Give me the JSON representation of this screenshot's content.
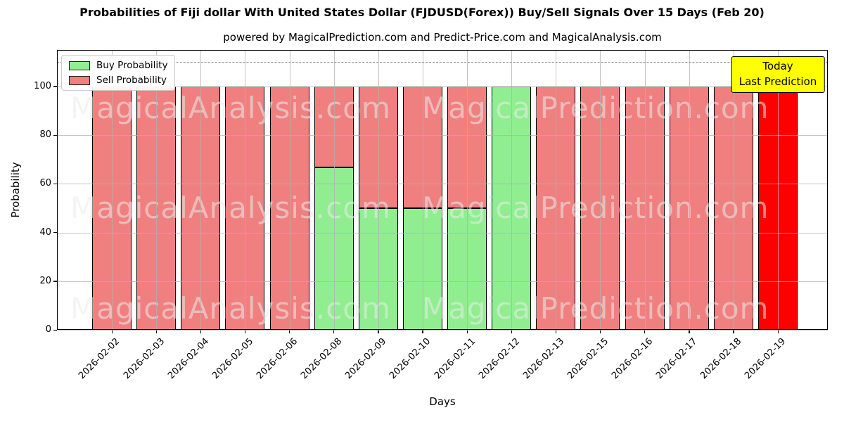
{
  "chart_data": {
    "type": "bar",
    "stacked": true,
    "title": "Probabilities of Fiji dollar With United States Dollar (FJDUSD(Forex)) Buy/Sell Signals Over 15 Days (Feb 20)",
    "subtitle": "powered by MagicalPrediction.com and Predict-Price.com and MagicalAnalysis.com",
    "xlabel": "Days",
    "ylabel": "Probability",
    "ylim": [
      0,
      115
    ],
    "yticks": [
      0,
      20,
      40,
      60,
      80,
      100
    ],
    "grid": true,
    "dashed_guide_y": 110,
    "categories": [
      "2026-02-02",
      "2026-02-03",
      "2026-02-04",
      "2026-02-05",
      "2026-02-06",
      "2026-02-08",
      "2026-02-09",
      "2026-02-10",
      "2026-02-11",
      "2026-02-12",
      "2026-02-13",
      "2026-02-15",
      "2026-02-16",
      "2026-02-17",
      "2026-02-18",
      "2026-02-19"
    ],
    "series": [
      {
        "name": "Buy Probability",
        "color": "#90ee90",
        "values": [
          0,
          0,
          0,
          0,
          0,
          66.67,
          50,
          50,
          50,
          100,
          0,
          0,
          0,
          0,
          0,
          0
        ]
      },
      {
        "name": "Sell Probability",
        "color": "#f08080",
        "values": [
          100,
          100,
          100,
          100,
          100,
          33.33,
          50,
          50,
          50,
          0,
          100,
          100,
          100,
          100,
          100,
          100
        ]
      }
    ],
    "last_prediction": {
      "index": 15,
      "color": "#ff0000"
    },
    "legend": {
      "position": "upper-left",
      "items": [
        {
          "label": "Buy Probability",
          "color": "#90ee90"
        },
        {
          "label": "Sell Probability",
          "color": "#f08080"
        }
      ]
    },
    "annotation": {
      "lines": [
        "Today",
        "Last Prediction"
      ],
      "bg_color": "#ffff00"
    },
    "watermarks": [
      "MagicalAnalysis.com",
      "MagicalPrediction.com"
    ],
    "colors": {
      "axis": "#000000",
      "gridline": "#b0b0b0",
      "dashed_guide": "#8a8a8a"
    }
  }
}
